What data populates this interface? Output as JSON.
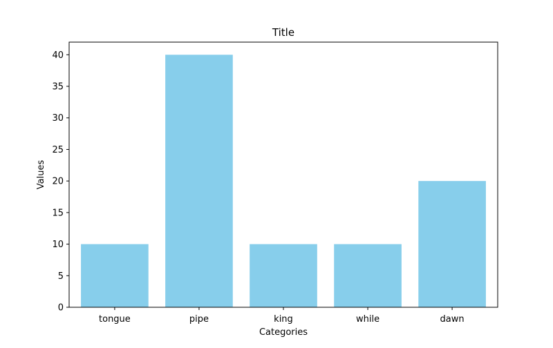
{
  "chart_data": {
    "type": "bar",
    "title": "Title",
    "xlabel": "Categories",
    "ylabel": "Values",
    "categories": [
      "tongue",
      "pipe",
      "king",
      "while",
      "dawn"
    ],
    "values": [
      10,
      40,
      10,
      10,
      20
    ],
    "ylim": [
      0,
      42
    ],
    "yticks": [
      0,
      5,
      10,
      15,
      20,
      25,
      30,
      35,
      40
    ],
    "grid": false,
    "legend": "none",
    "bar_color": "#87CEEB"
  }
}
